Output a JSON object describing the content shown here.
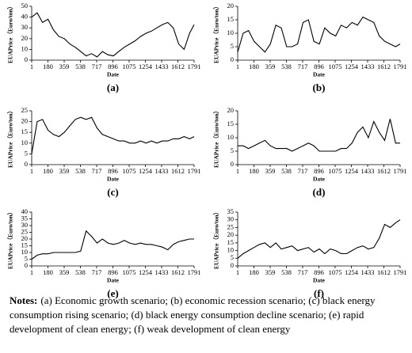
{
  "chart_data": [
    {
      "type": "line",
      "caption": "(a)",
      "x_label": "Date",
      "y_label": "EUAPrice（Euro/ton）",
      "color": "#000000",
      "x": [
        1,
        61,
        121,
        181,
        241,
        301,
        361,
        421,
        481,
        541,
        601,
        661,
        721,
        781,
        841,
        901,
        961,
        1021,
        1081,
        1141,
        1201,
        1261,
        1321,
        1381,
        1441,
        1501,
        1561,
        1621,
        1681,
        1741,
        1791
      ],
      "values": [
        40,
        44,
        35,
        38,
        28,
        22,
        20,
        15,
        12,
        8,
        4,
        6,
        3,
        8,
        5,
        4,
        8,
        12,
        15,
        18,
        22,
        25,
        27,
        30,
        33,
        35,
        30,
        15,
        10,
        25,
        33
      ],
      "xlim": [
        1,
        1791
      ],
      "xticks": [
        1,
        180,
        359,
        538,
        717,
        896,
        1075,
        1254,
        1433,
        1612,
        1791
      ],
      "ylim": [
        0,
        50
      ],
      "yticks": [
        0,
        10,
        20,
        30,
        40,
        50
      ]
    },
    {
      "type": "line",
      "caption": "(b)",
      "x_label": "Date",
      "y_label": "EUAPrice（Euro/ton）",
      "color": "#000000",
      "x": [
        1,
        61,
        121,
        181,
        241,
        301,
        361,
        421,
        481,
        541,
        601,
        661,
        721,
        781,
        841,
        901,
        961,
        1021,
        1081,
        1141,
        1201,
        1261,
        1321,
        1381,
        1441,
        1501,
        1561,
        1621,
        1681,
        1741,
        1791
      ],
      "values": [
        3,
        10,
        11,
        7,
        5,
        3,
        6,
        13,
        12,
        5,
        5,
        6,
        14,
        15,
        7,
        6,
        12,
        10,
        9,
        13,
        12,
        14,
        13,
        16,
        15,
        14,
        9,
        7,
        6,
        5,
        6
      ],
      "xlim": [
        1,
        1791
      ],
      "xticks": [
        1,
        180,
        359,
        538,
        717,
        896,
        1075,
        1254,
        1433,
        1612,
        1791
      ],
      "ylim": [
        0,
        20
      ],
      "yticks": [
        0,
        5,
        10,
        15,
        20
      ]
    },
    {
      "type": "line",
      "caption": "(c)",
      "x_label": "Date",
      "y_label": "EUAPrice（Euro/ton）",
      "color": "#000000",
      "x": [
        1,
        61,
        121,
        181,
        241,
        301,
        361,
        421,
        481,
        541,
        601,
        661,
        721,
        781,
        841,
        901,
        961,
        1021,
        1081,
        1141,
        1201,
        1261,
        1321,
        1381,
        1441,
        1501,
        1561,
        1621,
        1681,
        1741,
        1791
      ],
      "values": [
        5,
        20,
        21,
        16,
        14,
        13,
        15,
        18,
        21,
        22,
        21,
        22,
        17,
        14,
        13,
        12,
        11,
        11,
        10,
        10,
        11,
        10,
        11,
        10,
        11,
        11,
        12,
        12,
        13,
        12,
        13
      ],
      "xlim": [
        1,
        1791
      ],
      "xticks": [
        1,
        180,
        359,
        538,
        717,
        896,
        1075,
        1254,
        1433,
        1612,
        1791
      ],
      "ylim": [
        0,
        25
      ],
      "yticks": [
        0,
        5,
        10,
        15,
        20,
        25
      ]
    },
    {
      "type": "line",
      "caption": "(d)",
      "x_label": "Date",
      "y_label": "EUAPrice（Euro/ton）",
      "color": "#000000",
      "x": [
        1,
        61,
        121,
        181,
        241,
        301,
        361,
        421,
        481,
        541,
        601,
        661,
        721,
        781,
        841,
        901,
        961,
        1021,
        1081,
        1141,
        1201,
        1261,
        1321,
        1381,
        1441,
        1501,
        1561,
        1621,
        1681,
        1741,
        1791
      ],
      "values": [
        7,
        7,
        6,
        7,
        8,
        9,
        7,
        6,
        6,
        6,
        5,
        6,
        7,
        8,
        7,
        5,
        5,
        5,
        5,
        6,
        6,
        8,
        12,
        14,
        10,
        16,
        12,
        9,
        17,
        8,
        8
      ],
      "xlim": [
        1,
        1791
      ],
      "xticks": [
        1,
        180,
        359,
        538,
        717,
        896,
        1075,
        1254,
        1433,
        1612,
        1791
      ],
      "ylim": [
        0,
        20
      ],
      "yticks": [
        0,
        5,
        10,
        15,
        20
      ]
    },
    {
      "type": "line",
      "caption": "(e)",
      "x_label": "Date",
      "y_label": "EUAPrice（Euro/ton）",
      "color": "#000000",
      "x": [
        1,
        61,
        121,
        181,
        241,
        301,
        361,
        421,
        481,
        541,
        601,
        661,
        721,
        781,
        841,
        901,
        961,
        1021,
        1081,
        1141,
        1201,
        1261,
        1321,
        1381,
        1441,
        1501,
        1561,
        1621,
        1681,
        1741,
        1791
      ],
      "values": [
        5,
        8,
        9,
        9,
        10,
        10,
        10,
        10,
        10,
        11,
        26,
        22,
        17,
        20,
        17,
        16,
        17,
        19,
        17,
        16,
        17,
        16,
        16,
        15,
        14,
        12,
        16,
        18,
        19,
        20,
        20
      ],
      "xlim": [
        1,
        1791
      ],
      "xticks": [
        1,
        180,
        359,
        538,
        717,
        896,
        1075,
        1254,
        1433,
        1612,
        1791
      ],
      "ylim": [
        0,
        40
      ],
      "yticks": [
        0,
        5,
        10,
        15,
        20,
        25,
        30,
        35,
        40
      ]
    },
    {
      "type": "line",
      "caption": "(f)",
      "x_label": "Date",
      "y_label": "EUAPrice（Euro/ton）",
      "color": "#000000",
      "x": [
        1,
        61,
        121,
        181,
        241,
        301,
        361,
        421,
        481,
        541,
        601,
        661,
        721,
        781,
        841,
        901,
        961,
        1021,
        1081,
        1141,
        1201,
        1261,
        1321,
        1381,
        1441,
        1501,
        1561,
        1621,
        1681,
        1741,
        1791
      ],
      "values": [
        5,
        8,
        10,
        12,
        14,
        15,
        12,
        15,
        11,
        12,
        13,
        10,
        11,
        12,
        9,
        11,
        8,
        11,
        10,
        8,
        8,
        10,
        12,
        13,
        11,
        12,
        18,
        27,
        25,
        28,
        30
      ],
      "xlim": [
        1,
        1791
      ],
      "xticks": [
        1,
        180,
        359,
        538,
        717,
        896,
        1075,
        1254,
        1433,
        1612,
        1791
      ],
      "ylim": [
        0,
        35
      ],
      "yticks": [
        0,
        5,
        10,
        15,
        20,
        25,
        30,
        35
      ]
    }
  ],
  "notes": {
    "label": "Notes:",
    "lines": [
      "(a) Economic growth scenario; (b) economic recession scenario; (c) black energy",
      "consumption rising scenario; (d) black energy consumption decline scenario; (e) rapid",
      "development of clean energy; (f) weak development of clean energy"
    ]
  }
}
